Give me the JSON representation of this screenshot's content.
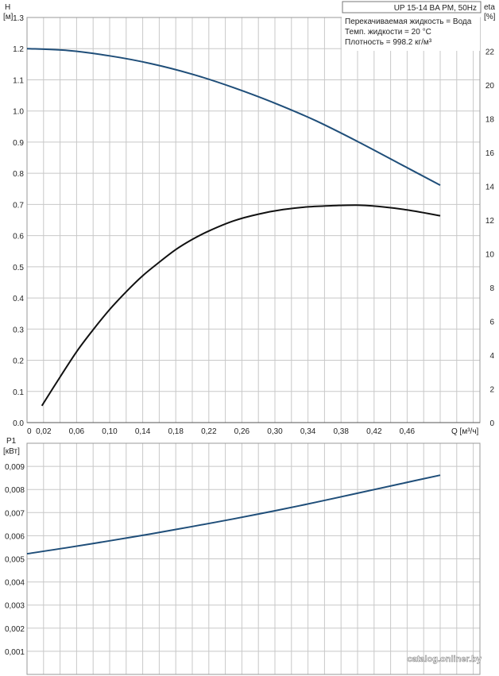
{
  "title_box": "UP 15-14 BA PM, 50Hz",
  "info_lines": [
    "Перекачиваемая жидкость = Вода",
    "Темп. жидкости = 20 °C",
    "Плотность = 998.2 кг/м³"
  ],
  "watermark": "catalog.onliner.by",
  "colors": {
    "head_curve": "#1f4e79",
    "eta_curve": "#111111",
    "power_curve": "#1f4e79",
    "grid": "#c8c8c8",
    "axis": "#555555"
  },
  "chart_data": [
    {
      "type": "line",
      "name": "head-and-efficiency",
      "ylabel_left": [
        "H",
        "[м]"
      ],
      "ylabel_right": [
        "eta",
        "[%]"
      ],
      "xlabel": "Q [м³/ч]",
      "xlim": [
        0,
        0.54
      ],
      "ylim_left": [
        0,
        1.3
      ],
      "ylim_right": [
        0,
        24
      ],
      "x_ticks": [
        "0",
        "0,02",
        "0,06",
        "0,10",
        "0,14",
        "0,18",
        "0,22",
        "0,26",
        "0,30",
        "0,34",
        "0,38",
        "0,42",
        "0,46"
      ],
      "x_tick_values": [
        0,
        0.02,
        0.06,
        0.1,
        0.14,
        0.18,
        0.22,
        0.26,
        0.3,
        0.34,
        0.38,
        0.42,
        0.46
      ],
      "y_ticks_left": [
        "0.0",
        "0.1",
        "0.2",
        "0.3",
        "0.4",
        "0.5",
        "0.6",
        "0.7",
        "0.8",
        "0.9",
        "1.0",
        "1.1",
        "1.2",
        "1.3"
      ],
      "y_tick_values_left": [
        0,
        0.1,
        0.2,
        0.3,
        0.4,
        0.5,
        0.6,
        0.7,
        0.8,
        0.9,
        1.0,
        1.1,
        1.2,
        1.3
      ],
      "y_ticks_right": [
        "0",
        "2",
        "4",
        "6",
        "8",
        "10",
        "12",
        "14",
        "16",
        "18",
        "20",
        "22"
      ],
      "y_tick_values_right": [
        0,
        2,
        4,
        6,
        8,
        10,
        12,
        14,
        16,
        18,
        20,
        22
      ],
      "grid": true,
      "series": [
        {
          "axis": "left",
          "x": [
            0,
            0.05,
            0.1,
            0.15,
            0.2,
            0.25,
            0.3,
            0.35,
            0.4,
            0.45,
            0.5
          ],
          "values": [
            1.2,
            1.194,
            1.177,
            1.152,
            1.118,
            1.075,
            1.025,
            0.968,
            0.902,
            0.832,
            0.762
          ]
        },
        {
          "axis": "right",
          "x": [
            0.018,
            0.04,
            0.06,
            0.08,
            0.1,
            0.12,
            0.14,
            0.16,
            0.18,
            0.2,
            0.22,
            0.25,
            0.28,
            0.31,
            0.34,
            0.37,
            0.4,
            0.43,
            0.46,
            0.5
          ],
          "values": [
            1.0,
            2.7,
            4.2,
            5.5,
            6.7,
            7.75,
            8.7,
            9.5,
            10.25,
            10.85,
            11.35,
            11.95,
            12.35,
            12.62,
            12.78,
            12.85,
            12.88,
            12.78,
            12.6,
            12.25
          ]
        }
      ]
    },
    {
      "type": "line",
      "name": "power",
      "ylabel_left": [
        "P1",
        "[кВт]"
      ],
      "xlim": [
        0,
        0.54
      ],
      "ylim_left": [
        0,
        0.01
      ],
      "y_ticks_left": [
        "0,001",
        "0,002",
        "0,003",
        "0,004",
        "0,005",
        "0,006",
        "0,007",
        "0,008",
        "0,009"
      ],
      "y_tick_values_left": [
        0.001,
        0.002,
        0.003,
        0.004,
        0.005,
        0.006,
        0.007,
        0.008,
        0.009
      ],
      "grid": true,
      "series": [
        {
          "axis": "left",
          "x": [
            0,
            0.05,
            0.1,
            0.15,
            0.2,
            0.25,
            0.3,
            0.35,
            0.4,
            0.45,
            0.5
          ],
          "values": [
            0.00522,
            0.00549,
            0.00578,
            0.00608,
            0.0064,
            0.00673,
            0.00708,
            0.00745,
            0.00784,
            0.00823,
            0.00862
          ]
        }
      ]
    }
  ]
}
